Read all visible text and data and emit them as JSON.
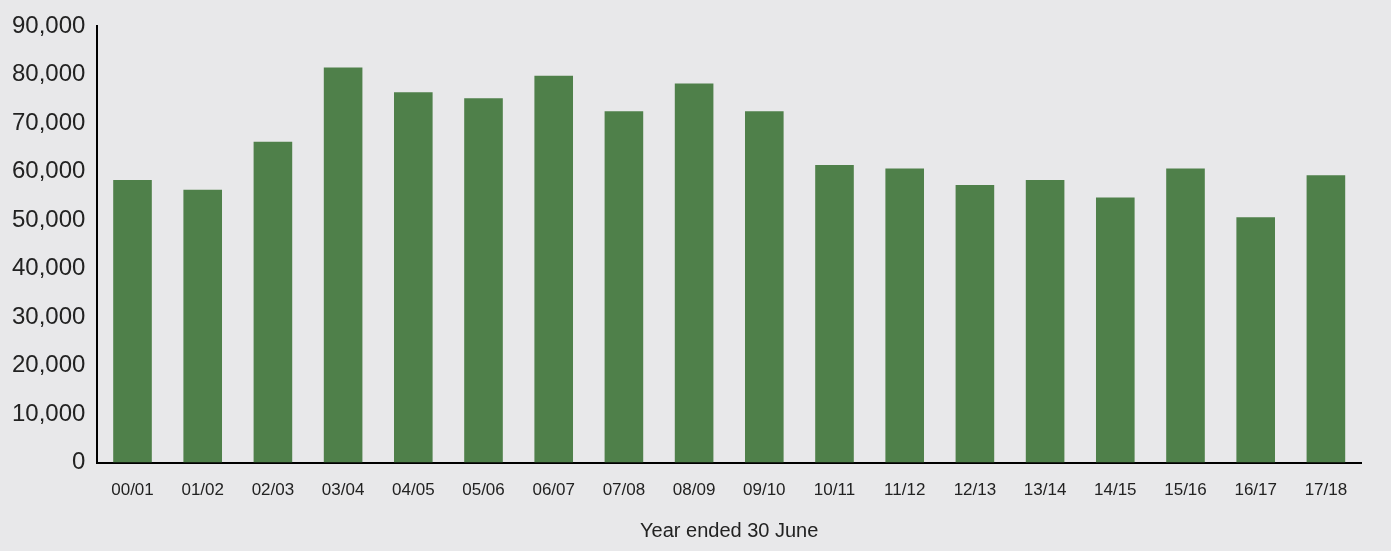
{
  "chart_data": {
    "type": "bar",
    "xlabel": "Year ended 30 June",
    "categories": [
      "00/01",
      "01/02",
      "02/03",
      "03/04",
      "04/05",
      "05/06",
      "06/07",
      "07/08",
      "08/09",
      "09/10",
      "10/11",
      "11/12",
      "12/13",
      "13/14",
      "14/15",
      "15/16",
      "16/17",
      "17/18"
    ],
    "values": [
      58300,
      56300,
      66200,
      81500,
      76400,
      75200,
      79800,
      72500,
      78200,
      72500,
      61400,
      60700,
      57300,
      58300,
      54700,
      60700,
      50600,
      59300
    ],
    "color": "#4f804a",
    "ylim": [
      0,
      90000
    ],
    "yticks": [
      {
        "value": 0,
        "label": "0"
      },
      {
        "value": 10000,
        "label": "10,000"
      },
      {
        "value": 20000,
        "label": "20,000"
      },
      {
        "value": 30000,
        "label": "30,000"
      },
      {
        "value": 40000,
        "label": "40,000"
      },
      {
        "value": 50000,
        "label": "50,000"
      },
      {
        "value": 60000,
        "label": "60,000"
      },
      {
        "value": 70000,
        "label": "70,000"
      },
      {
        "value": 80000,
        "label": "80,000"
      },
      {
        "value": 90000,
        "label": "90,000"
      }
    ],
    "grid": false,
    "legend": false
  }
}
